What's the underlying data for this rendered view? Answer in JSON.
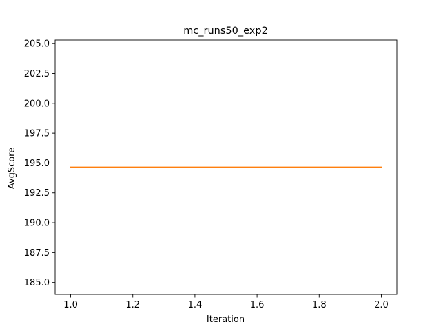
{
  "chart_data": {
    "type": "line",
    "title": "mc_runs50_exp2",
    "xlabel": "Iteration",
    "ylabel": "AvgScore",
    "xlim": [
      0.95,
      2.05
    ],
    "ylim": [
      184.0,
      205.3
    ],
    "xticks": [
      1.0,
      1.2,
      1.4,
      1.6,
      1.8,
      2.0
    ],
    "xtick_labels": [
      "1.0",
      "1.2",
      "1.4",
      "1.6",
      "1.8",
      "2.0"
    ],
    "yticks": [
      185.0,
      187.5,
      190.0,
      192.5,
      195.0,
      197.5,
      200.0,
      202.5,
      205.0
    ],
    "ytick_labels": [
      "185.0",
      "187.5",
      "190.0",
      "192.5",
      "195.0",
      "197.5",
      "200.0",
      "202.5",
      "205.0"
    ],
    "grid": false,
    "series": [
      {
        "x": [
          1.0,
          2.0
        ],
        "values": [
          194.65,
          194.65
        ],
        "color": "#ff7f0e"
      }
    ]
  }
}
